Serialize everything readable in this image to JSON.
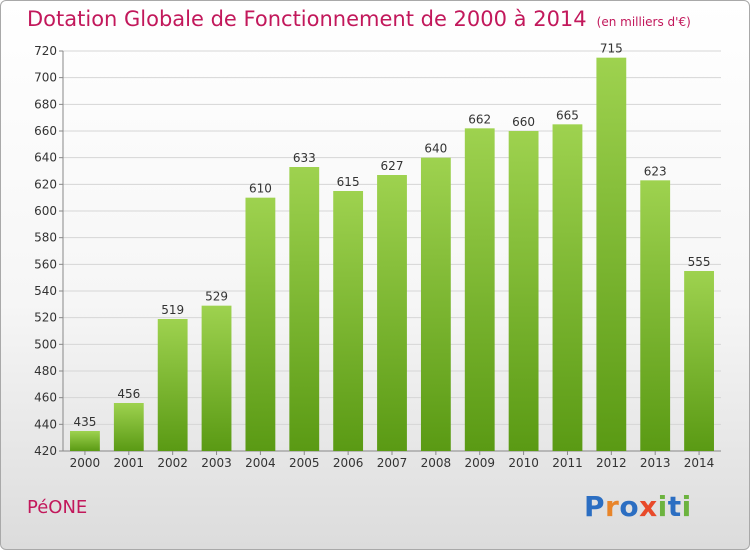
{
  "title": "Dotation Globale de Fonctionnement de 2000 à 2014",
  "unit_label": "(en milliers d'€)",
  "commune": "PéONE",
  "logo": {
    "letters": [
      "P",
      "r",
      "o",
      "x",
      "i",
      "t",
      "i"
    ],
    "colors": [
      "#2b6ec2",
      "#e8852a",
      "#2b6ec2",
      "#e84a2a",
      "#6cb33f",
      "#2b6ec2",
      "#6cb33f"
    ]
  },
  "colors": {
    "title": "#c2185b",
    "bar_top": "#9ed24f",
    "bar_bottom": "#5a9a14",
    "grid": "#d6d6d6"
  },
  "chart_data": {
    "type": "bar",
    "categories": [
      "2000",
      "2001",
      "2002",
      "2003",
      "2004",
      "2005",
      "2006",
      "2007",
      "2008",
      "2009",
      "2010",
      "2011",
      "2012",
      "2013",
      "2014"
    ],
    "values": [
      435,
      456,
      519,
      529,
      610,
      633,
      615,
      627,
      640,
      662,
      660,
      665,
      715,
      623,
      555
    ],
    "ylim": [
      420,
      720
    ],
    "yticks": [
      420,
      440,
      460,
      480,
      500,
      520,
      540,
      560,
      580,
      600,
      620,
      640,
      660,
      680,
      700,
      720
    ],
    "grid": true
  }
}
